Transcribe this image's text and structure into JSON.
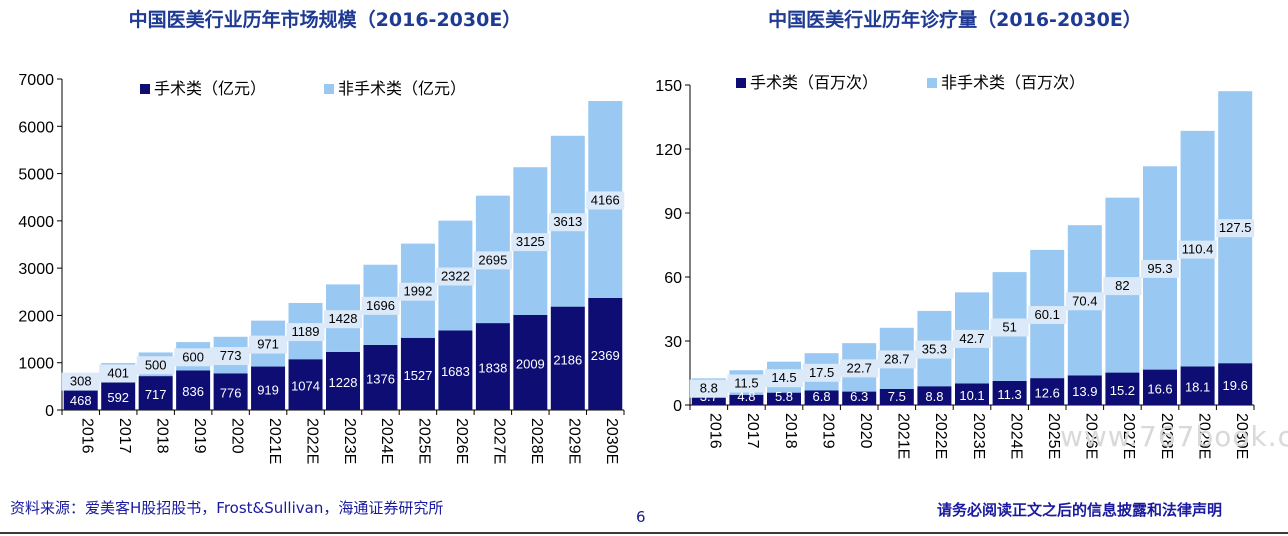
{
  "titles": {
    "left": "中国医美行业历年市场规模（2016-2030E）",
    "right": "中国医美行业历年诊疗量（2016-2030E）"
  },
  "footer": {
    "source": "资料来源：爱美客H股招股书，Frost&Sullivan，海通证券研究所",
    "page": "6",
    "disclaimer": "请务必阅读正文之后的信息披露和法律声明"
  },
  "watermark": "www.767book.com",
  "colors": {
    "surgical": "#0d0d73",
    "nonsurgical": "#99c9f2",
    "axis": "#000000",
    "title": "#1f3a93"
  },
  "chart_data": [
    {
      "type": "bar",
      "stacked": true,
      "title": "中国医美行业历年市场规模（2016-2030E）",
      "categories": [
        "2016",
        "2017",
        "2018",
        "2019",
        "2020",
        "2021E",
        "2022E",
        "2023E",
        "2024E",
        "2025E",
        "2026E",
        "2027E",
        "2028E",
        "2029E",
        "2030E"
      ],
      "series": [
        {
          "name": "手术类（亿元）",
          "values": [
            468,
            592,
            717,
            836,
            776,
            919,
            1074,
            1228,
            1376,
            1527,
            1683,
            1838,
            2009,
            2186,
            2369
          ]
        },
        {
          "name": "非手术类（亿元）",
          "values": [
            308,
            401,
            500,
            600,
            773,
            971,
            1189,
            1428,
            1696,
            1992,
            2322,
            2695,
            3125,
            3613,
            4166
          ]
        }
      ],
      "ylim": [
        0,
        7000
      ],
      "yticks": [
        0,
        1000,
        2000,
        3000,
        4000,
        5000,
        6000,
        7000
      ],
      "legend": "top-left",
      "grid": false
    },
    {
      "type": "bar",
      "stacked": true,
      "title": "中国医美行业历年诊疗量（2016-2030E）",
      "categories": [
        "2016",
        "2017",
        "2018",
        "2019",
        "2020",
        "2021E",
        "2022E",
        "2023E",
        "2024E",
        "2025E",
        "2026E",
        "2027E",
        "2028E",
        "2029E",
        "2030E"
      ],
      "series": [
        {
          "name": "手术类（百万次）",
          "values": [
            3.7,
            4.8,
            5.8,
            6.8,
            6.3,
            7.5,
            8.8,
            10.1,
            11.3,
            12.6,
            13.9,
            15.2,
            16.6,
            18.1,
            19.6
          ]
        },
        {
          "name": "非手术类（百万次）",
          "values": [
            8.8,
            11.5,
            14.5,
            17.5,
            22.7,
            28.7,
            35.3,
            42.7,
            51,
            60.1,
            70.4,
            82,
            95.3,
            110.4,
            127.5
          ]
        }
      ],
      "ylim": [
        0,
        150
      ],
      "yticks": [
        0,
        30,
        60,
        90,
        120,
        150
      ],
      "legend": "top-left",
      "grid": false
    }
  ]
}
